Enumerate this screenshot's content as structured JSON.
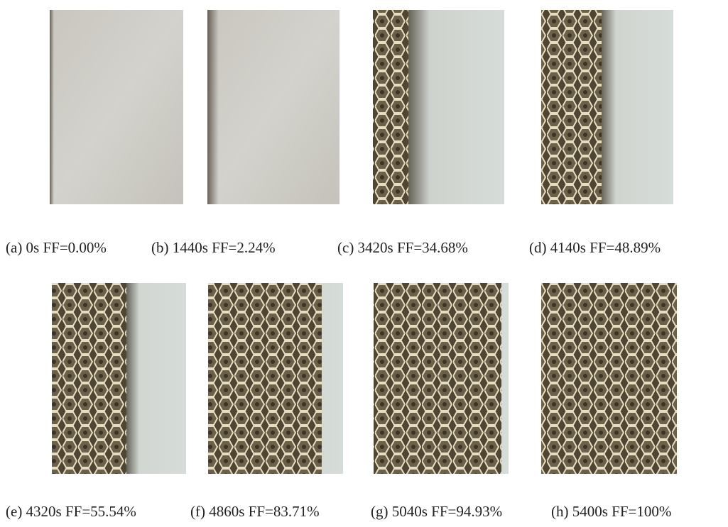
{
  "figure": {
    "panels": [
      {
        "caption": "(a) 0s FF=0.00%"
      },
      {
        "caption": "(b) 1440s FF=2.24%"
      },
      {
        "caption": "(c) 3420s FF=34.68%"
      },
      {
        "caption": "(d) 4140s FF=48.89%"
      },
      {
        "caption": "(e) 4320s FF=55.54%"
      },
      {
        "caption": "(f) 4860s FF=83.71%"
      },
      {
        "caption": "(g) 5040s FF=94.93%"
      },
      {
        "caption": "(h) 5400s FF=100%"
      }
    ]
  }
}
